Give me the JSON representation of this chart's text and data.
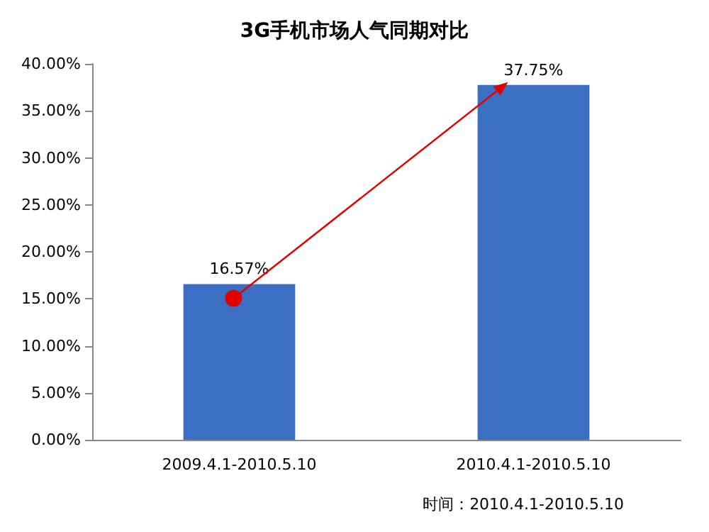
{
  "chart_data": {
    "type": "bar",
    "title": "3G手机市场人气同期对比",
    "categories": [
      "2009.4.1-2010.5.10",
      "2010.4.1-2010.5.10"
    ],
    "values": [
      16.57,
      37.75
    ],
    "color": "#3a6fc4",
    "value_labels": [
      "16.57%",
      "37.75%"
    ],
    "ylim": [
      0,
      40
    ],
    "yticks": [
      {
        "value": 0,
        "label": "0.00%"
      },
      {
        "value": 5,
        "label": "5.00%"
      },
      {
        "value": 10,
        "label": "10.00%"
      },
      {
        "value": 15,
        "label": "15.00%"
      },
      {
        "value": 20,
        "label": "20.00%"
      },
      {
        "value": 25,
        "label": "25.00%"
      },
      {
        "value": 30,
        "label": "30.00%"
      },
      {
        "value": 35,
        "label": "35.00%"
      },
      {
        "value": 40,
        "label": "40.00%"
      }
    ],
    "grid": false,
    "annotations": [
      "时间：2010.4.1-2010.5.10"
    ]
  }
}
